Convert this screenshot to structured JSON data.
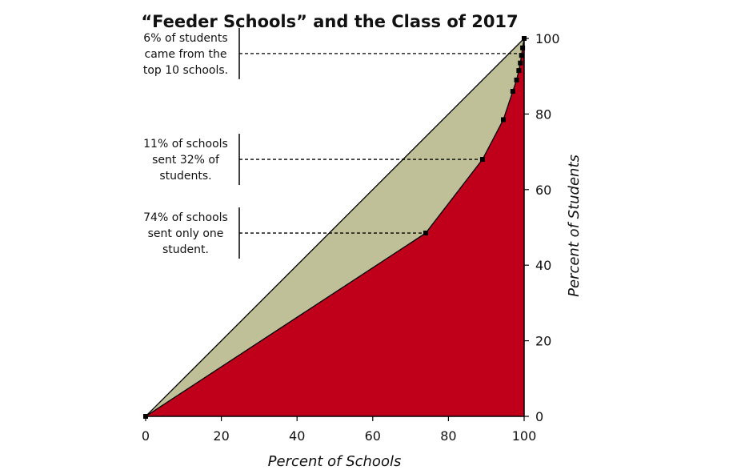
{
  "colors": {
    "lorenz_fill": "#c0001a",
    "equality_gap_fill": "#bfbf98",
    "line": "#000000"
  },
  "chart_data": {
    "type": "area",
    "title": "“Feeder Schools” and the Class of 2017",
    "xlabel": "Percent of Schools",
    "ylabel": "Percent of Students",
    "xlim": [
      0,
      100
    ],
    "ylim": [
      0,
      100
    ],
    "x_ticks": [
      0,
      20,
      40,
      60,
      80,
      100
    ],
    "y_ticks": [
      0,
      20,
      40,
      60,
      80,
      100
    ],
    "grid": false,
    "series": [
      {
        "name": "Equality line",
        "x": [
          0,
          100
        ],
        "y": [
          0,
          100
        ]
      },
      {
        "name": "Cumulative share of students",
        "x": [
          0,
          74,
          89,
          94.5,
          97,
          98,
          98.6,
          99,
          99.3,
          99.6,
          100
        ],
        "y": [
          0,
          48.5,
          68,
          78.5,
          86,
          89,
          91.5,
          93.5,
          95.5,
          97.5,
          100
        ]
      }
    ],
    "annotations": [
      {
        "y": 96,
        "lines": [
          "6% of students",
          "came from the",
          "top 10 schools."
        ]
      },
      {
        "y": 68,
        "lines": [
          "11% of schools",
          "sent 32% of",
          "students."
        ]
      },
      {
        "y": 48.5,
        "lines": [
          "74% of schools",
          "sent only one",
          "student."
        ]
      }
    ]
  }
}
